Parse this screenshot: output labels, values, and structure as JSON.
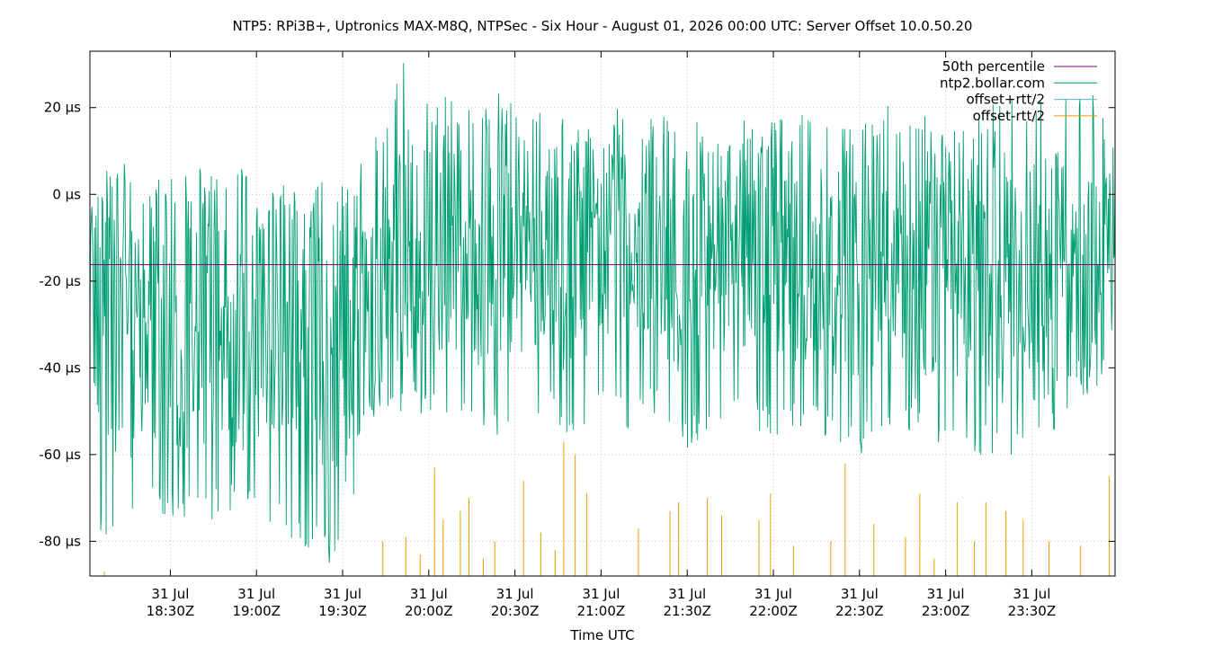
{
  "chart_data": {
    "type": "line",
    "title": "NTP5: RPi3B+, Uptronics MAX-M8Q, NTPSec - Six Hour - August 01, 2026 00:00 UTC: Server Offset 10.0.50.20",
    "xlabel": "Time UTC",
    "ylabel": "",
    "ylim": [
      -88,
      33
    ],
    "xlim": [
      "2026-07-31T18:02Z",
      "2026-07-31T23:59Z"
    ],
    "y_ticks": [
      20,
      0,
      -20,
      -40,
      -60,
      -80
    ],
    "y_tick_labels": [
      "20 µs",
      "0 µs",
      "-20 µs",
      "-40 µs",
      "-60 µs",
      "-80 µs"
    ],
    "x_ticks": [
      {
        "t": "2026-07-31T18:30Z",
        "line1": "31 Jul",
        "line2": "18:30Z"
      },
      {
        "t": "2026-07-31T19:00Z",
        "line1": "31 Jul",
        "line2": "19:00Z"
      },
      {
        "t": "2026-07-31T19:30Z",
        "line1": "31 Jul",
        "line2": "19:30Z"
      },
      {
        "t": "2026-07-31T20:00Z",
        "line1": "31 Jul",
        "line2": "20:00Z"
      },
      {
        "t": "2026-07-31T20:30Z",
        "line1": "31 Jul",
        "line2": "20:30Z"
      },
      {
        "t": "2026-07-31T21:00Z",
        "line1": "31 Jul",
        "line2": "21:00Z"
      },
      {
        "t": "2026-07-31T21:30Z",
        "line1": "31 Jul",
        "line2": "21:30Z"
      },
      {
        "t": "2026-07-31T22:00Z",
        "line1": "31 Jul",
        "line2": "22:00Z"
      },
      {
        "t": "2026-07-31T22:30Z",
        "line1": "31 Jul",
        "line2": "22:30Z"
      },
      {
        "t": "2026-07-31T23:00Z",
        "line1": "31 Jul",
        "line2": "23:00Z"
      },
      {
        "t": "2026-07-31T23:30Z",
        "line1": "31 Jul",
        "line2": "23:30Z"
      }
    ],
    "grid": true,
    "legend_position": "top-right",
    "percentile_50": -16.2,
    "series": [
      {
        "name": "50th percentile",
        "color": "#800080",
        "style": "line",
        "x": [
          "2026-07-31T18:02Z",
          "2026-07-31T23:59Z"
        ],
        "y": [
          -16.2,
          -16.2
        ]
      },
      {
        "name": "ntp2.bollar.com",
        "color": "#009e73",
        "style": "line",
        "x": [
          "2026-07-31T18:02Z",
          "2026-07-31T18:10Z",
          "2026-07-31T18:20Z",
          "2026-07-31T18:30Z",
          "2026-07-31T18:40Z",
          "2026-07-31T18:50Z",
          "2026-07-31T19:00Z",
          "2026-07-31T19:10Z",
          "2026-07-31T19:20Z",
          "2026-07-31T19:30Z",
          "2026-07-31T19:40Z",
          "2026-07-31T19:50Z",
          "2026-07-31T20:00Z",
          "2026-07-31T20:10Z",
          "2026-07-31T20:20Z",
          "2026-07-31T20:30Z",
          "2026-07-31T20:40Z",
          "2026-07-31T20:50Z",
          "2026-07-31T21:00Z",
          "2026-07-31T21:10Z",
          "2026-07-31T21:20Z",
          "2026-07-31T21:30Z",
          "2026-07-31T21:40Z",
          "2026-07-31T21:50Z",
          "2026-07-31T22:00Z",
          "2026-07-31T22:10Z",
          "2026-07-31T22:20Z",
          "2026-07-31T22:30Z",
          "2026-07-31T22:40Z",
          "2026-07-31T22:50Z",
          "2026-07-31T23:00Z",
          "2026-07-31T23:10Z",
          "2026-07-31T23:20Z",
          "2026-07-31T23:30Z",
          "2026-07-31T23:40Z",
          "2026-07-31T23:50Z",
          "2026-07-31T23:59Z"
        ],
        "y": [
          -25,
          -30,
          -35,
          -32,
          -28,
          -35,
          -30,
          -26,
          -34,
          -38,
          -30,
          -15,
          -8,
          -14,
          -12,
          -10,
          -12,
          -15,
          -10,
          -14,
          -12,
          -16,
          -13,
          -11,
          -12,
          -14,
          -16,
          -15,
          -18,
          -16,
          -14,
          -17,
          -19,
          -21,
          -18,
          -20,
          -15
        ],
        "y_low": [
          -81,
          -78,
          -70,
          -75,
          -78,
          -73,
          -72,
          -80,
          -83,
          -88,
          -55,
          -50,
          -52,
          -50,
          -55,
          -57,
          -50,
          -60,
          -45,
          -55,
          -52,
          -60,
          -52,
          -53,
          -56,
          -55,
          -58,
          -60,
          -57,
          -55,
          -58,
          -60,
          -62,
          -55,
          -58,
          -50,
          -48
        ],
        "y_high": [
          -6,
          10,
          4,
          5,
          6,
          8,
          8,
          2,
          4,
          5,
          10,
          32,
          25,
          22,
          24,
          24,
          18,
          19,
          20,
          20,
          18,
          22,
          15,
          17,
          18,
          20,
          15,
          18,
          22,
          21,
          16,
          20,
          22,
          25,
          24,
          28,
          10
        ]
      },
      {
        "name": "offset+rtt/2",
        "color": "#56b4e9",
        "style": "line",
        "x": [],
        "y": []
      },
      {
        "name": "offset-rtt/2",
        "color": "#e69f00",
        "style": "impulses",
        "x": [
          "2026-07-31T18:07Z",
          "2026-07-31T19:44Z",
          "2026-07-31T19:52Z",
          "2026-07-31T19:57Z",
          "2026-07-31T20:02Z",
          "2026-07-31T20:05Z",
          "2026-07-31T20:11Z",
          "2026-07-31T20:14Z",
          "2026-07-31T20:19Z",
          "2026-07-31T20:23Z",
          "2026-07-31T20:33Z",
          "2026-07-31T20:39Z",
          "2026-07-31T20:44Z",
          "2026-07-31T20:47Z",
          "2026-07-31T20:51Z",
          "2026-07-31T20:55Z",
          "2026-07-31T21:13Z",
          "2026-07-31T21:24Z",
          "2026-07-31T21:27Z",
          "2026-07-31T21:37Z",
          "2026-07-31T21:42Z",
          "2026-07-31T21:55Z",
          "2026-07-31T21:59Z",
          "2026-07-31T22:07Z",
          "2026-07-31T22:20Z",
          "2026-07-31T22:25Z",
          "2026-07-31T22:35Z",
          "2026-07-31T22:46Z",
          "2026-07-31T22:51Z",
          "2026-07-31T22:56Z",
          "2026-07-31T23:04Z",
          "2026-07-31T23:10Z",
          "2026-07-31T23:14Z",
          "2026-07-31T23:21Z",
          "2026-07-31T23:27Z",
          "2026-07-31T23:36Z",
          "2026-07-31T23:47Z",
          "2026-07-31T23:57Z"
        ],
        "y": [
          -87,
          -80,
          -79,
          -83,
          -63,
          -75,
          -73,
          -70,
          -84,
          -80,
          -66,
          -78,
          -82,
          -57,
          -60,
          -69,
          -77,
          -73,
          -71,
          -70,
          -74,
          -75,
          -69,
          -81,
          -80,
          -62,
          -76,
          -79,
          -69,
          -84,
          -71,
          -80,
          -71,
          -73,
          -75,
          -80,
          -81,
          -65
        ]
      }
    ]
  }
}
